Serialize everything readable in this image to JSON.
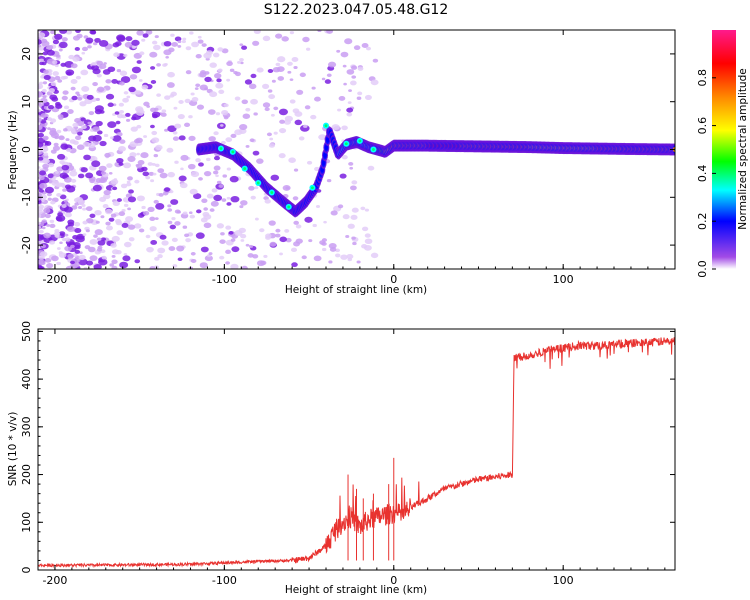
{
  "title": "S122.2023.047.05.48.G12",
  "chart_data": [
    {
      "type": "heatmap",
      "xlabel": "Height of straight line (km)",
      "ylabel": "Frequency (Hz)",
      "xlim": [
        -210,
        166
      ],
      "ylim": [
        -25,
        25
      ],
      "x_ticks": [
        -200,
        -100,
        0,
        100
      ],
      "y_ticks": [
        -20,
        -10,
        0,
        10,
        20
      ],
      "colorbar": {
        "label": "Normalized spectral amplitude",
        "range": [
          0,
          1
        ],
        "ticks": [
          "0.0",
          "0.2",
          "0.4",
          "0.6",
          "0.8"
        ],
        "colors": [
          "#ffffff",
          "#8a2be2",
          "#0000ff",
          "#00ffff",
          "#00ff00",
          "#ffff00",
          "#ff8800",
          "#ff0000",
          "#ff1493"
        ]
      },
      "signal_trace": {
        "x": [
          -115,
          -105,
          -95,
          -85,
          -75,
          -65,
          -58,
          -52,
          -46,
          -42,
          -38,
          -33,
          -28,
          -22,
          -15,
          -10,
          -5,
          0,
          20,
          40,
          60,
          80,
          100,
          120,
          140,
          166
        ],
        "y": [
          0,
          0.5,
          -1,
          -4,
          -8,
          -11,
          -13,
          -11,
          -8,
          -4,
          4,
          -1,
          1,
          1.6,
          0.5,
          0,
          -0.5,
          0.8,
          0.8,
          0.7,
          0.6,
          0.5,
          0.3,
          0.2,
          0.1,
          0
        ],
        "amplitude": [
          0.3,
          0.3,
          0.25,
          0.3,
          0.35,
          0.35,
          0.3,
          0.3,
          0.35,
          0.3,
          0.3,
          0.4,
          0.45,
          0.5,
          0.5,
          0.55,
          0.7,
          0.85,
          0.9,
          0.9,
          0.85,
          0.8,
          0.75,
          0.8,
          0.85,
          0.85
        ]
      }
    },
    {
      "type": "line",
      "xlabel": "Height of straight line (km)",
      "ylabel": "SNR (10 * v/v)",
      "xlim": [
        -210,
        166
      ],
      "ylim": [
        0,
        505
      ],
      "x_ticks": [
        -200,
        -100,
        0,
        100
      ],
      "y_ticks": [
        0,
        100,
        200,
        300,
        400,
        500
      ],
      "series": [
        {
          "color": "#e8322f",
          "x": [
            -210,
            -180,
            -150,
            -120,
            -100,
            -80,
            -60,
            -50,
            -40,
            -35,
            -30,
            -25,
            -20,
            -15,
            -10,
            -5,
            0,
            5,
            10,
            20,
            30,
            40,
            50,
            60,
            70,
            71,
            80,
            90,
            100,
            110,
            120,
            140,
            166
          ],
          "values": [
            10,
            10,
            11,
            12,
            15,
            18,
            20,
            25,
            50,
            80,
            100,
            110,
            90,
            105,
            110,
            115,
            120,
            115,
            130,
            150,
            170,
            180,
            190,
            195,
            200,
            445,
            450,
            460,
            465,
            470,
            470,
            475,
            480
          ],
          "spikes": [
            [
              -27,
              200
            ],
            [
              -22,
              170
            ],
            [
              -18,
              150
            ],
            [
              -12,
              160
            ],
            [
              0,
              235
            ],
            [
              -3,
              180
            ]
          ]
        }
      ]
    }
  ]
}
